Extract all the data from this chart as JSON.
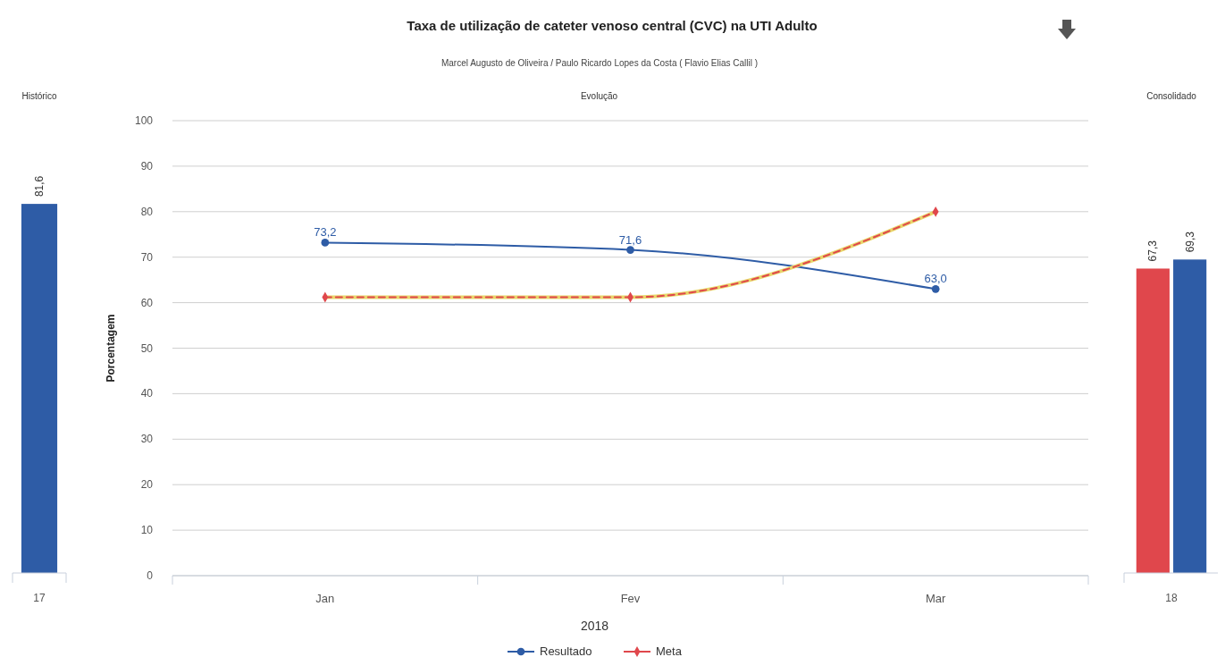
{
  "chart_data": [
    {
      "type": "bar",
      "title": "Histórico",
      "categories": [
        "17"
      ],
      "values": [
        81.6
      ],
      "colors": [
        "#2e5ca6"
      ],
      "value_labels": [
        "81,6"
      ],
      "tick_labels": "x"
    },
    {
      "type": "line",
      "title": "Taxa de utilização de cateter venoso central (CVC) na UTI Adulto",
      "subtitle": "Marcel Augusto de Oliveira / Paulo Ricardo Lopes da Costa ( Flavio Elias Callil )",
      "annotations": [
        "Evolução"
      ],
      "xlabel": "2018",
      "ylabel": "Porcentagem",
      "categories": [
        "Jan",
        "Fev",
        "Mar"
      ],
      "ylim": [
        0,
        100
      ],
      "yticks": [
        0,
        10,
        20,
        30,
        40,
        50,
        60,
        70,
        80,
        90,
        100
      ],
      "grid": "y",
      "legend": "bottom",
      "series": [
        {
          "name": "Resultado",
          "color": "#2e5ca6",
          "values": [
            73.2,
            71.6,
            63.0
          ],
          "value_labels": [
            "73,2",
            "71,6",
            "63,0"
          ],
          "marker": "circle",
          "line_style": "solid"
        },
        {
          "name": "Meta",
          "color": "#e0474c",
          "values": [
            61.2,
            61.2,
            80.0
          ],
          "marker": "diamond",
          "line_style": "dashed"
        }
      ]
    },
    {
      "type": "bar",
      "title": "Consolidado",
      "categories": [
        "18"
      ],
      "tick_labels": "x",
      "series": [
        {
          "color": "#e0474c",
          "values": [
            67.3
          ],
          "value_labels": [
            "67,3"
          ]
        },
        {
          "color": "#2e5ca6",
          "values": [
            69.3
          ],
          "value_labels": [
            "69,3"
          ]
        }
      ]
    }
  ]
}
